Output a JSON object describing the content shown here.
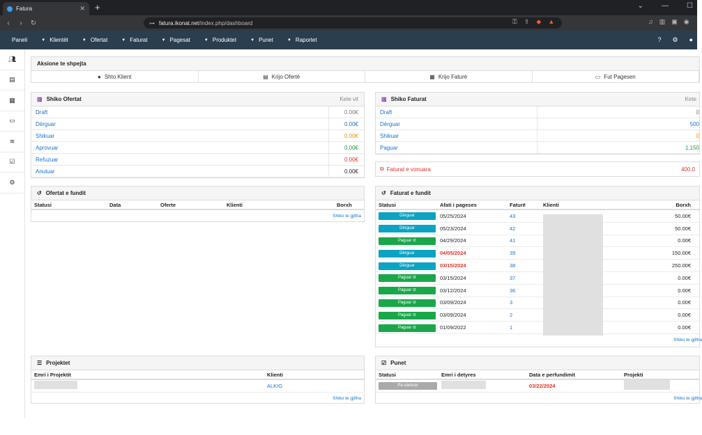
{
  "browser": {
    "tab_title": "Fatura",
    "url_host": "fatura.ikonat.net",
    "url_path": "/index.php/dashboard"
  },
  "nav": {
    "items": [
      "Paneli",
      "Klientët",
      "Ofertat",
      "Faturat",
      "Pagesat",
      "Produktet",
      "Punet",
      "Raportet"
    ]
  },
  "quick_actions": {
    "title": "Aksione te shpejta",
    "items": [
      "Shto Klient",
      "Krijo Ofertë",
      "Krijo Faturë",
      "Fut Pagesen"
    ]
  },
  "offers_summary": {
    "title": "Shiko Ofertat",
    "period": "Kete vit",
    "rows": [
      {
        "label": "Draft",
        "value": "0.00€",
        "color": "#777777"
      },
      {
        "label": "Dërguar",
        "value": "0.00€",
        "color": "#1a73c8"
      },
      {
        "label": "Shikuar",
        "value": "0.00€",
        "color": "#f08c00"
      },
      {
        "label": "Aprovuar",
        "value": "0.00€",
        "color": "#1a9a3c"
      },
      {
        "label": "Refuzuar",
        "value": "0.00€",
        "color": "#e0322b"
      },
      {
        "label": "Anuluar",
        "value": "0.00€",
        "color": "#222222"
      }
    ]
  },
  "invoices_summary": {
    "title": "Shiko Faturat",
    "period": "Kete",
    "rows": [
      {
        "label": "Draft",
        "value": "0",
        "color": "#777777"
      },
      {
        "label": "Dërguar",
        "value": "500",
        "color": "#1a73c8"
      },
      {
        "label": "Shikuar",
        "value": "0",
        "color": "#f08c00"
      },
      {
        "label": "Paguar",
        "value": "1,150",
        "color": "#1a9a3c"
      }
    ],
    "overdue_label": "Faturat e vonuara",
    "overdue_value": "400.0"
  },
  "recent_offers": {
    "title": "Ofertat e fundit",
    "columns": [
      "Statusi",
      "Data",
      "Oferte",
      "Klienti",
      "Borxh"
    ],
    "see_all": "Shiko te gjitha"
  },
  "recent_invoices": {
    "title": "Faturat e fundit",
    "columns": [
      "Statusi",
      "Afati i pageses",
      "Faturë",
      "Klienti",
      "Borxh"
    ],
    "see_all": "Shiko te gjitha",
    "rows": [
      {
        "status": "Dërguar",
        "kind": "blue",
        "date": "05/25/2024",
        "overdue": false,
        "num": "43",
        "debt": "50.00€"
      },
      {
        "status": "Dërguar",
        "kind": "blue",
        "date": "05/23/2024",
        "overdue": false,
        "num": "42",
        "debt": "50.00€"
      },
      {
        "status": "Paguar",
        "kind": "green",
        "date": "04/29/2024",
        "overdue": false,
        "num": "41",
        "debt": "0.00€"
      },
      {
        "status": "Dërguar",
        "kind": "blue",
        "date": "04/05/2024",
        "overdue": true,
        "num": "39",
        "debt": "150.00€"
      },
      {
        "status": "Dërguar",
        "kind": "blue",
        "date": "03/15/2024",
        "overdue": true,
        "num": "38",
        "debt": "250.00€"
      },
      {
        "status": "Paguar",
        "kind": "green",
        "date": "03/15/2024",
        "overdue": false,
        "num": "37",
        "debt": "0.00€"
      },
      {
        "status": "Paguar",
        "kind": "green",
        "date": "03/12/2024",
        "overdue": false,
        "num": "36",
        "debt": "0.00€"
      },
      {
        "status": "Paguar",
        "kind": "green",
        "date": "03/09/2024",
        "overdue": false,
        "num": "3",
        "debt": "0.00€"
      },
      {
        "status": "Paguar",
        "kind": "green",
        "date": "03/09/2024",
        "overdue": false,
        "num": "2",
        "debt": "0.00€"
      },
      {
        "status": "Paguar",
        "kind": "green",
        "date": "01/09/2022",
        "overdue": false,
        "num": "1",
        "debt": "0.00€"
      }
    ]
  },
  "projects": {
    "title": "Projektet",
    "columns": [
      "Emri i Projektit",
      "Klienti"
    ],
    "rows": [
      {
        "client": "ALKIG"
      }
    ],
    "see_all": "Shiko te gjitha"
  },
  "tasks": {
    "title": "Punet",
    "columns": [
      "Statusi",
      "Emri i detyres",
      "Data e perfundimit",
      "Projekti"
    ],
    "rows": [
      {
        "status": "Pa startuar",
        "date": "03/22/2024"
      }
    ],
    "see_all": "Shiko te gjitha"
  }
}
